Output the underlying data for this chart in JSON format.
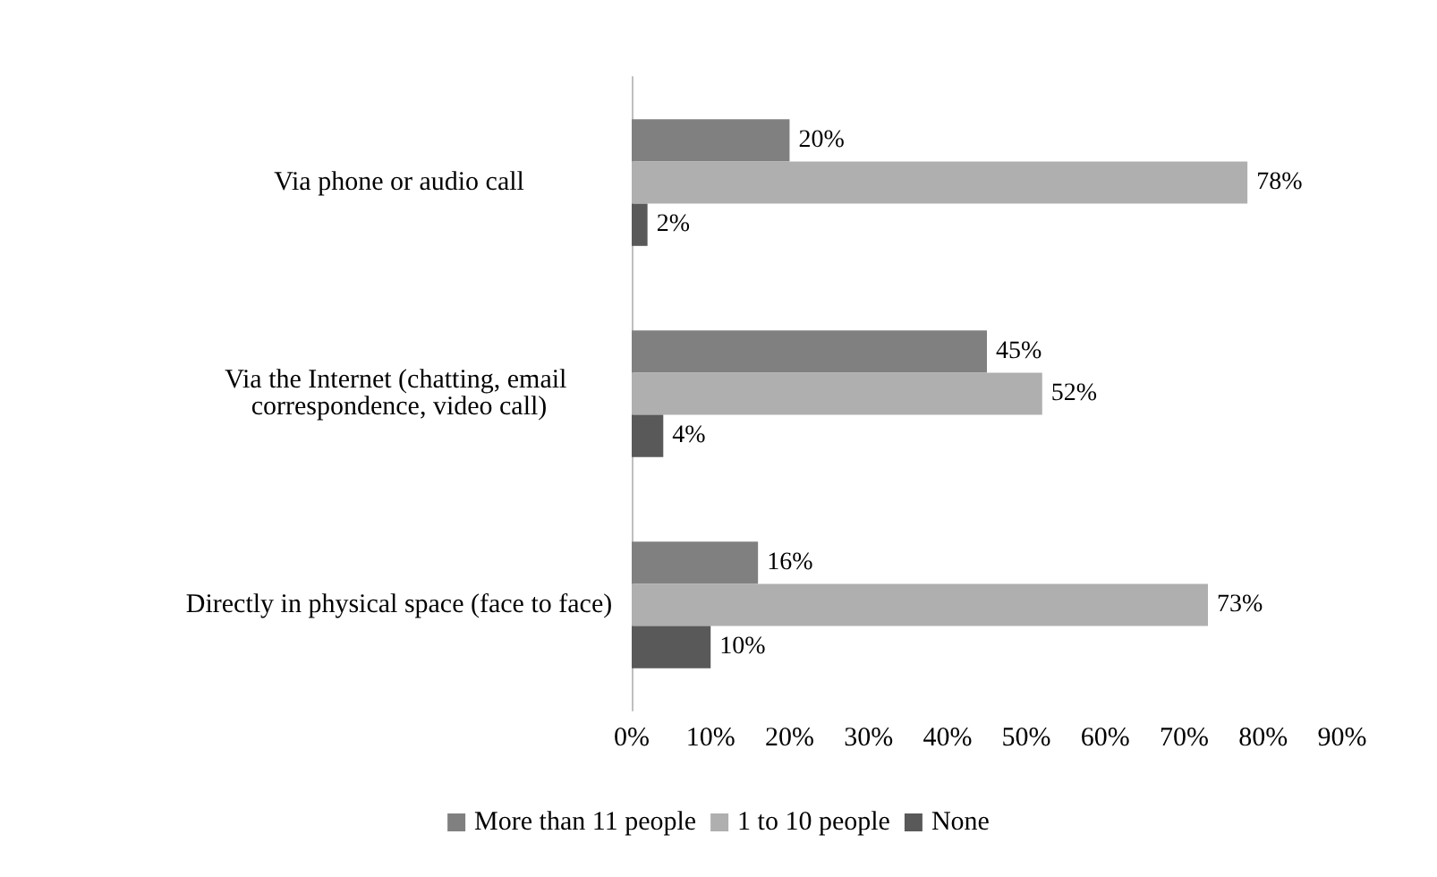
{
  "chart_data": {
    "type": "bar",
    "orientation": "horizontal",
    "categories": [
      "Via phone or audio call",
      "Via the Internet (chatting, email correspondence, video call)",
      "Directly in physical space (face to face)"
    ],
    "series": [
      {
        "name": "More than 11 people",
        "color": "#808080",
        "values": [
          20,
          45,
          16
        ],
        "value_labels": [
          "20%",
          "45%",
          "16%"
        ]
      },
      {
        "name": "1 to 10 people",
        "color": "#afafaf",
        "values": [
          78,
          52,
          73
        ],
        "value_labels": [
          "78%",
          "52%",
          "73%"
        ]
      },
      {
        "name": "None",
        "color": "#595959",
        "values": [
          2,
          4,
          10
        ],
        "value_labels": [
          "2%",
          "4%",
          "10%"
        ]
      }
    ],
    "xlim": [
      0,
      90
    ],
    "xticks": [
      {
        "value": 0,
        "label": "0%"
      },
      {
        "value": 10,
        "label": "10%"
      },
      {
        "value": 20,
        "label": "20%"
      },
      {
        "value": 30,
        "label": "30%"
      },
      {
        "value": 40,
        "label": "40%"
      },
      {
        "value": 50,
        "label": "50%"
      },
      {
        "value": 60,
        "label": "60%"
      },
      {
        "value": 70,
        "label": "70%"
      },
      {
        "value": 80,
        "label": "80%"
      },
      {
        "value": 90,
        "label": "90%"
      }
    ],
    "grid": false,
    "legend": "bottom"
  }
}
